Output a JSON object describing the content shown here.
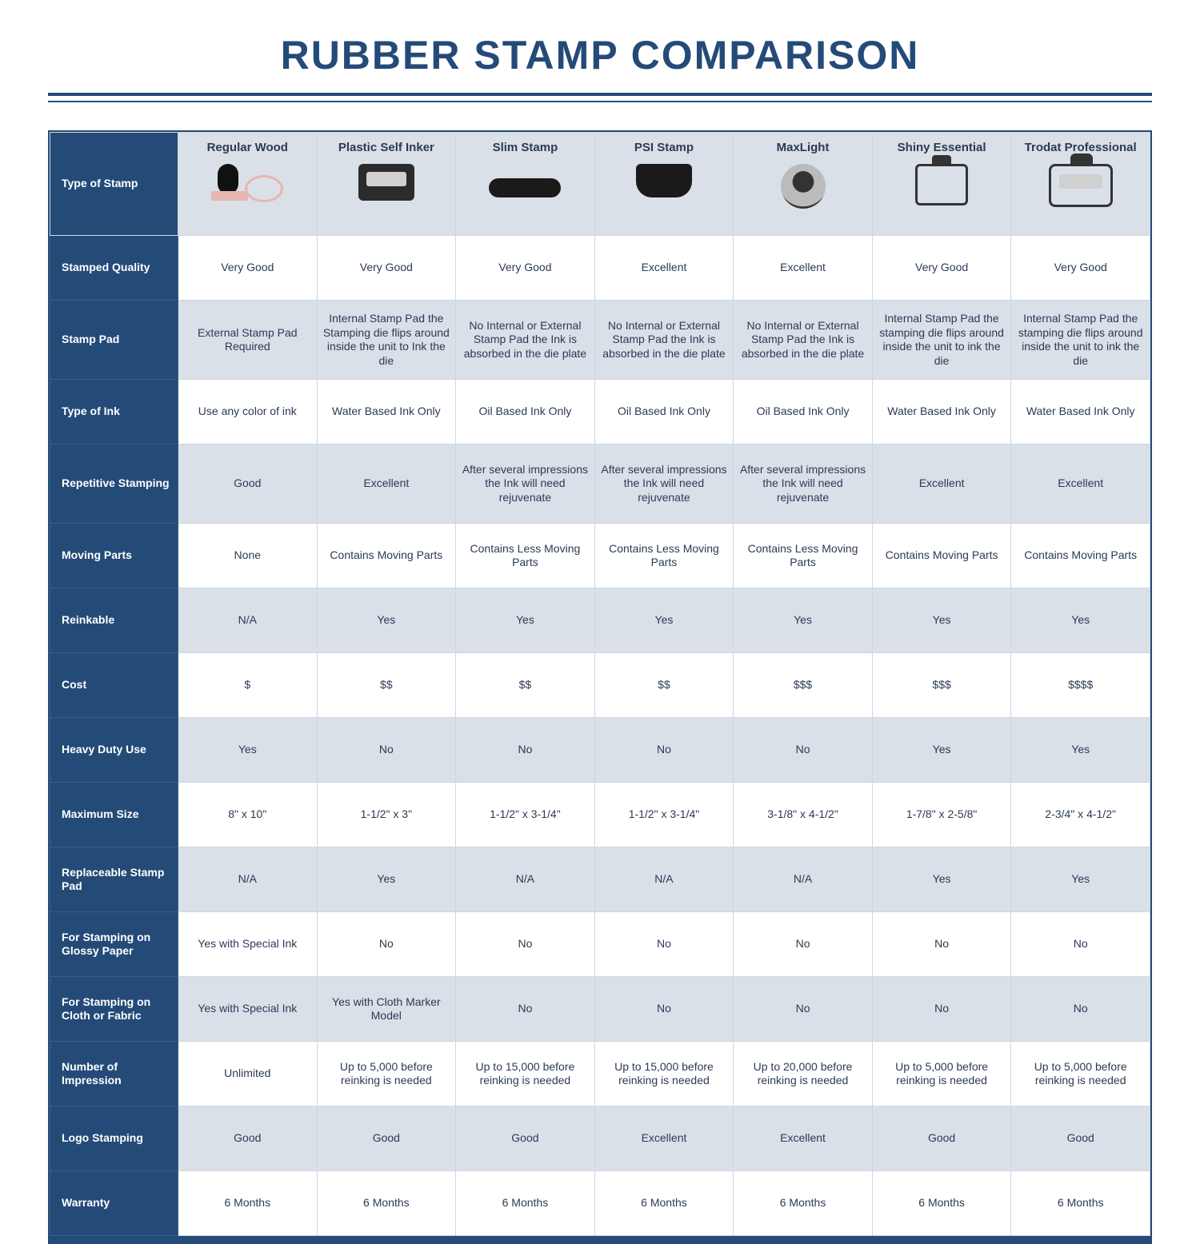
{
  "colors": {
    "brand": "#244b78",
    "headerRowBg": "#d9e0e8",
    "rowEvenBg": "#d9e0e8",
    "rowOddBg": "#ffffff",
    "border": "#cfd6de",
    "text": "#2b3a55"
  },
  "title": "RUBBER STAMP COMPARISON",
  "cornerLabel": "Type of Stamp",
  "columns": [
    {
      "label": "Regular Wood",
      "icon": "wood-stamp-icon"
    },
    {
      "label": "Plastic Self Inker",
      "icon": "self-inker-icon"
    },
    {
      "label": "Slim Stamp",
      "icon": "slim-stamp-icon"
    },
    {
      "label": "PSI Stamp",
      "icon": "psi-stamp-icon"
    },
    {
      "label": "MaxLight",
      "icon": "maxlight-stamp-icon"
    },
    {
      "label": "Shiny Essential",
      "icon": "shiny-stamp-icon"
    },
    {
      "label": "Trodat Professional",
      "icon": "trodat-stamp-icon"
    }
  ],
  "rows": [
    {
      "label": "Stamped Quality",
      "tall": false,
      "cells": [
        "Very Good",
        "Very Good",
        "Very Good",
        "Excellent",
        "Excellent",
        "Very Good",
        "Very Good"
      ]
    },
    {
      "label": "Stamp Pad",
      "tall": true,
      "cells": [
        "External Stamp Pad Required",
        "Internal Stamp Pad the Stamping die flips around inside the unit to Ink the die",
        "No Internal or External Stamp Pad the Ink is absorbed in the die plate",
        "No Internal or External Stamp Pad the Ink is absorbed in the die plate",
        "No Internal or External Stamp Pad the Ink is absorbed in the die plate",
        "Internal Stamp Pad the stamping die flips around inside the unit to ink the die",
        "Internal Stamp Pad the stamping die flips around inside the unit to ink the die"
      ]
    },
    {
      "label": "Type of Ink",
      "tall": false,
      "cells": [
        "Use any color of ink",
        "Water Based Ink Only",
        "Oil Based Ink Only",
        "Oil Based Ink Only",
        "Oil Based Ink Only",
        "Water Based Ink Only",
        "Water Based Ink Only"
      ]
    },
    {
      "label": "Repetitive Stamping",
      "tall": true,
      "cells": [
        "Good",
        "Excellent",
        "After several impressions the Ink will need rejuvenate",
        "After several impressions the Ink will need rejuvenate",
        "After several impressions the Ink will need rejuvenate",
        "Excellent",
        "Excellent"
      ]
    },
    {
      "label": "Moving Parts",
      "tall": false,
      "cells": [
        "None",
        "Contains Moving Parts",
        "Contains Less Moving Parts",
        "Contains Less Moving Parts",
        "Contains Less Moving Parts",
        "Contains Moving Parts",
        "Contains Moving Parts"
      ]
    },
    {
      "label": "Reinkable",
      "tall": false,
      "cells": [
        "N/A",
        "Yes",
        "Yes",
        "Yes",
        "Yes",
        "Yes",
        "Yes"
      ]
    },
    {
      "label": "Cost",
      "tall": false,
      "cells": [
        "$",
        "$$",
        "$$",
        "$$",
        "$$$",
        "$$$",
        "$$$$"
      ]
    },
    {
      "label": "Heavy Duty Use",
      "tall": false,
      "cells": [
        "Yes",
        "No",
        "No",
        "No",
        "No",
        "Yes",
        "Yes"
      ]
    },
    {
      "label": "Maximum Size",
      "tall": false,
      "cells": [
        "8\" x 10\"",
        "1-1/2\" x 3\"",
        "1-1/2\" x 3-1/4\"",
        "1-1/2\" x 3-1/4\"",
        "3-1/8\" x 4-1/2\"",
        "1-7/8\" x 2-5/8\"",
        "2-3/4\" x 4-1/2\""
      ]
    },
    {
      "label": "Replaceable Stamp Pad",
      "tall": false,
      "cells": [
        "N/A",
        "Yes",
        "N/A",
        "N/A",
        "N/A",
        "Yes",
        "Yes"
      ]
    },
    {
      "label": "For Stamping on Glossy Paper",
      "tall": false,
      "cells": [
        "Yes with Special Ink",
        "No",
        "No",
        "No",
        "No",
        "No",
        "No"
      ]
    },
    {
      "label": "For Stamping on Cloth or Fabric",
      "tall": false,
      "cells": [
        "Yes with Special Ink",
        "Yes with Cloth Marker Model",
        "No",
        "No",
        "No",
        "No",
        "No"
      ]
    },
    {
      "label": "Number of Impression",
      "tall": false,
      "cells": [
        "Unlimited",
        "Up to 5,000 before reinking is needed",
        "Up to 15,000 before reinking is needed",
        "Up to 15,000 before reinking is needed",
        "Up to 20,000 before reinking is needed",
        "Up to 5,000 before reinking is needed",
        "Up to 5,000 before reinking is needed"
      ]
    },
    {
      "label": "Logo Stamping",
      "tall": false,
      "cells": [
        "Good",
        "Good",
        "Good",
        "Excellent",
        "Excellent",
        "Good",
        "Good"
      ]
    },
    {
      "label": "Warranty",
      "tall": false,
      "cells": [
        "6 Months",
        "6 Months",
        "6 Months",
        "6 Months",
        "6 Months",
        "6 Months",
        "6 Months"
      ]
    }
  ]
}
